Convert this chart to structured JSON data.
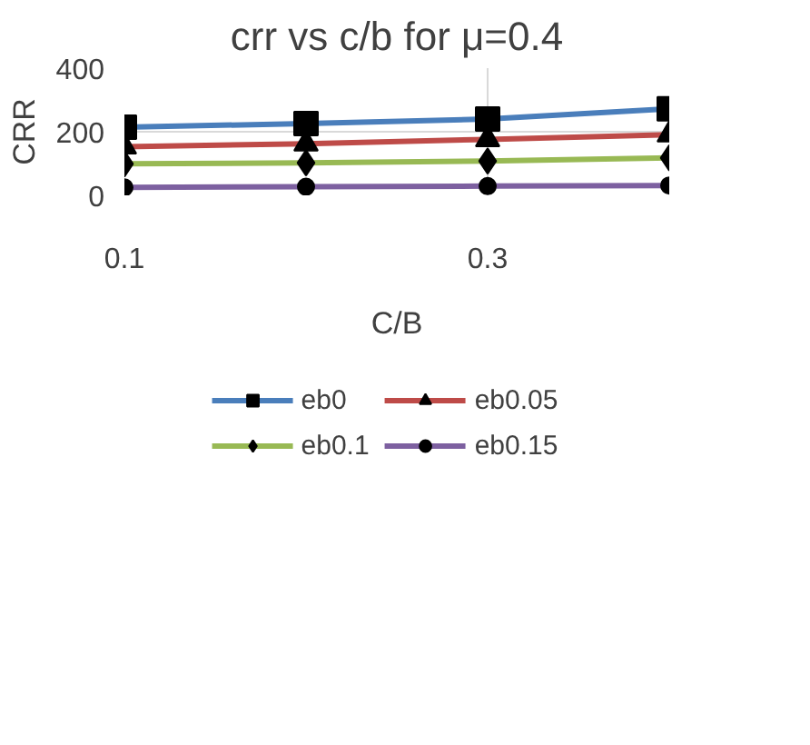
{
  "chart_data": {
    "type": "line",
    "title": "crr vs c/b for μ=0.4",
    "xlabel": "C/B",
    "ylabel": "CRR",
    "x": [
      0.1,
      0.2,
      0.3,
      0.4
    ],
    "xlim": [
      0.1,
      0.4
    ],
    "xticks": [
      0.1,
      0.3
    ],
    "ylim": [
      0,
      400
    ],
    "yticks": [
      0,
      200,
      400
    ],
    "grid": true,
    "legend": "bottom",
    "series": [
      {
        "name": "eb0",
        "color": "#4a7ebb",
        "values": [
          214,
          226,
          240,
          272
        ],
        "marker": "square"
      },
      {
        "name": "eb0.05",
        "color": "#be4b48",
        "values": [
          153,
          162,
          176,
          191
        ],
        "marker": "triangle"
      },
      {
        "name": "eb0.1",
        "color": "#98b954",
        "values": [
          99,
          102,
          108,
          118
        ],
        "marker": "diamond"
      },
      {
        "name": "eb0.15",
        "color": "#7d60a0",
        "values": [
          25,
          27,
          29,
          31
        ],
        "marker": "circle"
      }
    ]
  }
}
